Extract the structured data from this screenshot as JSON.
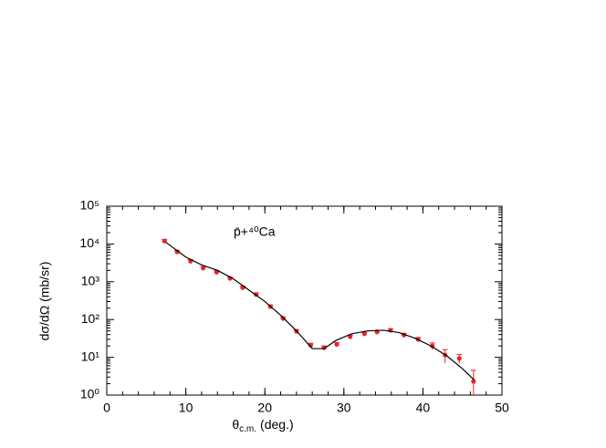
{
  "chart_data": {
    "type": "scatter",
    "annotation": "p̄+⁴⁰Ca",
    "xlabel_symbol": "θ",
    "xlabel_subscript": "c.m.",
    "xlabel_unit": "(deg.)",
    "ylabel": "dσ/dΩ (mb/sr)",
    "xlim": [
      0,
      50
    ],
    "xticks": [
      0,
      10,
      20,
      30,
      40,
      50
    ],
    "ylim": [
      1,
      100000
    ],
    "log_y": true,
    "yticks": [
      {
        "value": 1,
        "label": "10⁰"
      },
      {
        "value": 10,
        "label": "10¹"
      },
      {
        "value": 100,
        "label": "10²"
      },
      {
        "value": 1000,
        "label": "10³"
      },
      {
        "value": 10000,
        "label": "10⁴"
      },
      {
        "value": 100000,
        "label": "10⁵"
      }
    ],
    "series": [
      {
        "style": "markers",
        "color": "#e8262a",
        "x": [
          7.3,
          8.9,
          10.6,
          12.2,
          13.9,
          15.6,
          17.2,
          18.9,
          20.7,
          22.3,
          24.0,
          25.8,
          27.5,
          29.1,
          30.8,
          32.6,
          34.2,
          35.9,
          37.6,
          39.4,
          41.2,
          42.8,
          44.6,
          46.4
        ],
        "values": [
          12000,
          6200,
          3500,
          2300,
          1800,
          1230,
          700,
          460,
          220,
          107,
          49,
          21,
          18,
          22,
          35,
          42,
          47,
          52,
          39,
          30,
          20,
          11.5,
          9.3,
          2.3
        ],
        "errors": [
          1200,
          600,
          350,
          230,
          180,
          120,
          70,
          46,
          22,
          11,
          5,
          2.5,
          2,
          2.5,
          3.5,
          4,
          4.5,
          5,
          4,
          3.5,
          4,
          4.5,
          2.5,
          2.2
        ]
      },
      {
        "style": "line",
        "color": "#000000",
        "x": [
          7.5,
          10,
          12,
          14,
          16,
          18,
          20,
          22,
          24,
          26,
          27.5,
          29,
          31,
          33,
          35,
          37,
          39,
          41,
          43,
          45,
          46.5
        ],
        "values": [
          11000,
          4500,
          2800,
          2000,
          1200,
          600,
          300,
          130,
          50,
          17,
          17,
          28,
          42,
          50,
          52,
          45,
          32,
          20,
          11,
          5,
          2.5
        ]
      }
    ]
  }
}
